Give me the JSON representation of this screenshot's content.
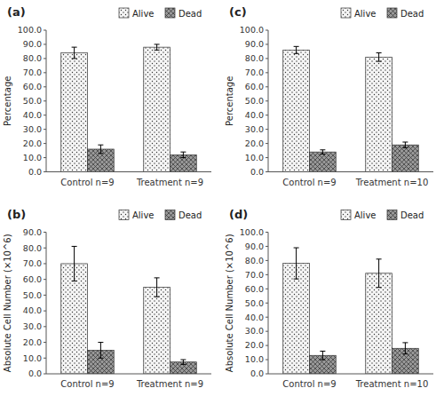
{
  "chart_data": [
    {
      "type": "bar",
      "title": "(a)",
      "y_label": "Percentage",
      "categories": [
        "Control n=9",
        "Treatment n=9"
      ],
      "series": [
        {
          "name": "Alive",
          "color": "#f5f5f5",
          "values": [
            84,
            88
          ],
          "errors": [
            4,
            2
          ]
        },
        {
          "name": "Dead",
          "color": "#999999",
          "values": [
            16,
            12
          ],
          "errors": [
            3,
            2
          ]
        }
      ],
      "ylim": [
        0,
        100
      ],
      "yticks": [
        {
          "value": 0,
          "label": "0.0"
        },
        {
          "value": 10,
          "label": "10.0"
        },
        {
          "value": 20,
          "label": "20.0"
        },
        {
          "value": 30,
          "label": "30.0"
        },
        {
          "value": 40,
          "label": "40.0"
        },
        {
          "value": 50,
          "label": "50.0"
        },
        {
          "value": 60,
          "label": "60.0"
        },
        {
          "value": 70,
          "label": "70.0"
        },
        {
          "value": 80,
          "label": "80.0"
        },
        {
          "value": 90,
          "label": "90.0"
        },
        {
          "value": 100,
          "label": "100.0"
        }
      ],
      "legend": "top"
    },
    {
      "type": "bar",
      "title": "(b)",
      "y_label": "Absolute Cell Number (×10^6)",
      "categories": [
        "Control n=9",
        "Treatment n=9"
      ],
      "series": [
        {
          "name": "Alive",
          "color": "#f5f5f5",
          "values": [
            70,
            55
          ],
          "errors": [
            11,
            6
          ]
        },
        {
          "name": "Dead",
          "color": "#999999",
          "values": [
            15,
            7.5
          ],
          "errors": [
            5,
            1.5
          ]
        }
      ],
      "ylim": [
        0,
        90
      ],
      "yticks": [
        {
          "value": 0,
          "label": "0.0"
        },
        {
          "value": 10,
          "label": "10.0"
        },
        {
          "value": 20,
          "label": "20.0"
        },
        {
          "value": 30,
          "label": "30.0"
        },
        {
          "value": 40,
          "label": "40.0"
        },
        {
          "value": 50,
          "label": "50.0"
        },
        {
          "value": 60,
          "label": "60.0"
        },
        {
          "value": 70,
          "label": "70.0"
        },
        {
          "value": 80,
          "label": "80.0"
        },
        {
          "value": 90,
          "label": "90.0"
        }
      ],
      "legend": "top"
    },
    {
      "type": "bar",
      "title": "(c)",
      "y_label": "Percentage",
      "categories": [
        "Control n=9",
        "Treatment n=10"
      ],
      "series": [
        {
          "name": "Alive",
          "color": "#f5f5f5",
          "values": [
            86,
            81
          ],
          "errors": [
            2.5,
            3
          ]
        },
        {
          "name": "Dead",
          "color": "#999999",
          "values": [
            14,
            19
          ],
          "errors": [
            1.5,
            2
          ]
        }
      ],
      "ylim": [
        0,
        100
      ],
      "yticks": [
        {
          "value": 0,
          "label": "0.0"
        },
        {
          "value": 10,
          "label": "10.0"
        },
        {
          "value": 20,
          "label": "20.0"
        },
        {
          "value": 30,
          "label": "30.0"
        },
        {
          "value": 40,
          "label": "40.0"
        },
        {
          "value": 50,
          "label": "50.0"
        },
        {
          "value": 60,
          "label": "60.0"
        },
        {
          "value": 70,
          "label": "70.0"
        },
        {
          "value": 80,
          "label": "80.0"
        },
        {
          "value": 90,
          "label": "90.0"
        },
        {
          "value": 100,
          "label": "100.0"
        }
      ],
      "legend": "top"
    },
    {
      "type": "bar",
      "title": "(d)",
      "y_label": "Absolute Cell Number (×10^6)",
      "categories": [
        "Control n=9",
        "Treatment n=10"
      ],
      "series": [
        {
          "name": "Alive",
          "color": "#f5f5f5",
          "values": [
            78,
            71
          ],
          "errors": [
            11,
            10
          ]
        },
        {
          "name": "Dead",
          "color": "#999999",
          "values": [
            13,
            18
          ],
          "errors": [
            3,
            4
          ]
        }
      ],
      "ylim": [
        0,
        100
      ],
      "yticks": [
        {
          "value": 0,
          "label": "0.0"
        },
        {
          "value": 10,
          "label": "10.0"
        },
        {
          "value": 20,
          "label": "20.0"
        },
        {
          "value": 30,
          "label": "30.0"
        },
        {
          "value": 40,
          "label": "40.0"
        },
        {
          "value": 50,
          "label": "50.0"
        },
        {
          "value": 60,
          "label": "60.0"
        },
        {
          "value": 70,
          "label": "70.0"
        },
        {
          "value": 80,
          "label": "80.0"
        },
        {
          "value": 90,
          "label": "90.0"
        },
        {
          "value": 100,
          "label": "100.0"
        }
      ],
      "legend": "top"
    }
  ]
}
